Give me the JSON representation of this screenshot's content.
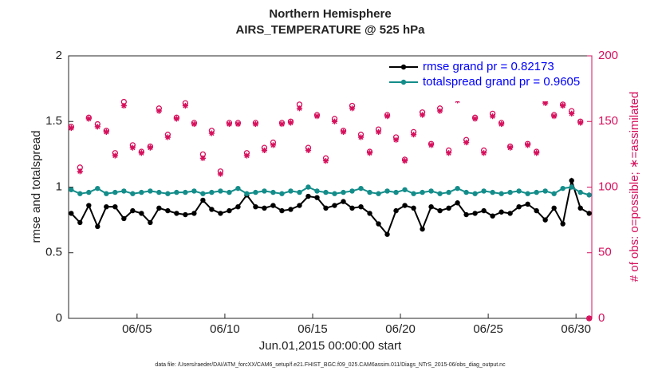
{
  "chart_data": {
    "type": "line",
    "title": "Northern Hemisphere",
    "subtitle": "AIRS_TEMPERATURE @ 525 hPa",
    "x_label": "Jun.01,2015 00:00:00 start",
    "y_label": "rmse and totalspread",
    "y2_label": "# of obs: o=possible; ∗=assimilated",
    "footnote": "data file: /Users/raeder/DAI/ATM_forcXX/CAM6_setup/f.e21.FHIST_BGC.f09_025.CAM6assim.011/Diags_NTrS_2015-06/obs_diag_output.nc",
    "x": [
      1.25,
      1.75,
      2.25,
      2.75,
      3.25,
      3.75,
      4.25,
      4.75,
      5.25,
      5.75,
      6.25,
      6.75,
      7.25,
      7.75,
      8.25,
      8.75,
      9.25,
      9.75,
      10.25,
      10.75,
      11.25,
      11.75,
      12.25,
      12.75,
      13.25,
      13.75,
      14.25,
      14.75,
      15.25,
      15.75,
      16.25,
      16.75,
      17.25,
      17.75,
      18.25,
      18.75,
      19.25,
      19.75,
      20.25,
      20.75,
      21.25,
      21.75,
      22.25,
      22.75,
      23.25,
      23.75,
      24.25,
      24.75,
      25.25,
      25.75,
      26.25,
      26.75,
      27.25,
      27.75,
      28.25,
      28.75,
      29.25,
      29.75,
      30.25,
      30.75
    ],
    "xlim": [
      1.1,
      30.9
    ],
    "xticks": [
      {
        "value": 5,
        "label": "06/05"
      },
      {
        "value": 10,
        "label": "06/10"
      },
      {
        "value": 15,
        "label": "06/15"
      },
      {
        "value": 20,
        "label": "06/20"
      },
      {
        "value": 25,
        "label": "06/25"
      },
      {
        "value": 30,
        "label": "06/30"
      }
    ],
    "ylim": [
      0,
      2
    ],
    "yticks": [
      0,
      0.5,
      1,
      1.5,
      2
    ],
    "y2lim": [
      0,
      200
    ],
    "y2ticks": [
      0,
      50,
      100,
      150,
      200
    ],
    "legend": "upper right",
    "legend_color": "#0000ff",
    "series": [
      {
        "name": "rmse grand pr = 0.82173",
        "color": "#000000",
        "marker": "dot",
        "values": [
          0.8,
          0.73,
          0.86,
          0.7,
          0.85,
          0.85,
          0.76,
          0.82,
          0.8,
          0.73,
          0.84,
          0.82,
          0.8,
          0.79,
          0.8,
          0.9,
          0.83,
          0.8,
          0.82,
          0.85,
          0.94,
          0.85,
          0.84,
          0.86,
          0.82,
          0.83,
          0.86,
          0.93,
          0.92,
          0.84,
          0.86,
          0.89,
          0.84,
          0.85,
          0.8,
          0.72,
          0.64,
          0.82,
          0.86,
          0.84,
          0.68,
          0.85,
          0.82,
          0.84,
          0.88,
          0.79,
          0.8,
          0.82,
          0.78,
          0.81,
          0.8,
          0.85,
          0.87,
          0.82,
          0.75,
          0.84,
          0.72,
          1.05,
          0.84,
          0.8
        ]
      },
      {
        "name": "totalspread grand pr = 0.9605",
        "color": "#138d8a",
        "marker": "dot",
        "values": [
          0.98,
          0.95,
          0.96,
          0.99,
          0.95,
          0.96,
          0.97,
          0.95,
          0.96,
          0.97,
          0.96,
          0.95,
          0.96,
          0.96,
          0.97,
          0.95,
          0.96,
          0.97,
          0.96,
          0.99,
          0.95,
          0.96,
          0.97,
          0.96,
          0.95,
          0.97,
          0.96,
          1.0,
          0.97,
          0.96,
          0.95,
          0.96,
          0.97,
          0.99,
          0.96,
          0.95,
          0.97,
          0.96,
          0.98,
          0.95,
          0.96,
          0.97,
          0.95,
          0.96,
          0.99,
          0.96,
          0.95,
          0.97,
          0.96,
          0.95,
          0.96,
          0.97,
          0.95,
          0.96,
          0.97,
          0.95,
          0.99,
          1.0,
          0.96,
          0.94
        ]
      },
      {
        "axis": "y2",
        "color": "#d6105c",
        "marker": "circle",
        "values": [
          146,
          115,
          153,
          148,
          143,
          126,
          165,
          132,
          127,
          131,
          160,
          140,
          153,
          164,
          149,
          125,
          143,
          112,
          149,
          149,
          126,
          149,
          130,
          134,
          149,
          150,
          163,
          130,
          155,
          122,
          152,
          143,
          162,
          140,
          127,
          144,
          155,
          138,
          121,
          142,
          157,
          133,
          160,
          128,
          168,
          136,
          153,
          128,
          156,
          149,
          131,
          173,
          133,
          127,
          166,
          155,
          163,
          158,
          150,
          0
        ]
      },
      {
        "axis": "y2",
        "color": "#d6105c",
        "marker": "star",
        "values": [
          145,
          112,
          152,
          146,
          142,
          124,
          162,
          130,
          126,
          130,
          158,
          138,
          152,
          162,
          148,
          122,
          141,
          110,
          148,
          148,
          124,
          148,
          128,
          132,
          148,
          149,
          160,
          128,
          154,
          120,
          150,
          142,
          160,
          138,
          126,
          142,
          154,
          136,
          120,
          140,
          155,
          132,
          158,
          126,
          166,
          134,
          152,
          126,
          154,
          148,
          130,
          170,
          132,
          126,
          164,
          154,
          162,
          156,
          149,
          0
        ]
      }
    ]
  }
}
